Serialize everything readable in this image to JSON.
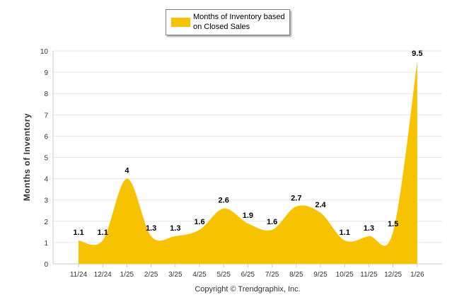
{
  "chart_data": {
    "type": "area",
    "title": "",
    "legend": {
      "label": "Months of Inventory based on Closed Sales",
      "placement": "top-center"
    },
    "ylabel": "Months of Inventory",
    "xlabel": "",
    "ylim": [
      0,
      10
    ],
    "yticks": [
      0,
      1,
      2,
      3,
      4,
      5,
      6,
      7,
      8,
      9,
      10
    ],
    "grid": true,
    "categories": [
      "11/24",
      "12/24",
      "1/25",
      "2/25",
      "3/25",
      "4/25",
      "5/25",
      "6/25",
      "7/25",
      "8/25",
      "9/25",
      "10/25",
      "11/25",
      "12/25",
      "1/26"
    ],
    "series": [
      {
        "name": "Months of Inventory based on Closed Sales",
        "values": [
          1.1,
          1.1,
          4,
          1.3,
          1.3,
          1.6,
          2.6,
          1.9,
          1.6,
          2.7,
          2.4,
          1.1,
          1.3,
          1.5,
          9.5
        ],
        "labels": [
          "1.1",
          "1.1",
          "4",
          "1.3",
          "1.3",
          "1.6",
          "2.6",
          "1.9",
          "1.6",
          "2.7",
          "2.4",
          "1.1",
          "1.3",
          "1.5",
          "9.5"
        ]
      }
    ],
    "colors": {
      "fill": "#f7c200",
      "grid": "#e6e6e6",
      "axis": "#c8c8c8"
    }
  },
  "footer": {
    "copyright": "Copyright © Trendgraphix, Inc."
  }
}
